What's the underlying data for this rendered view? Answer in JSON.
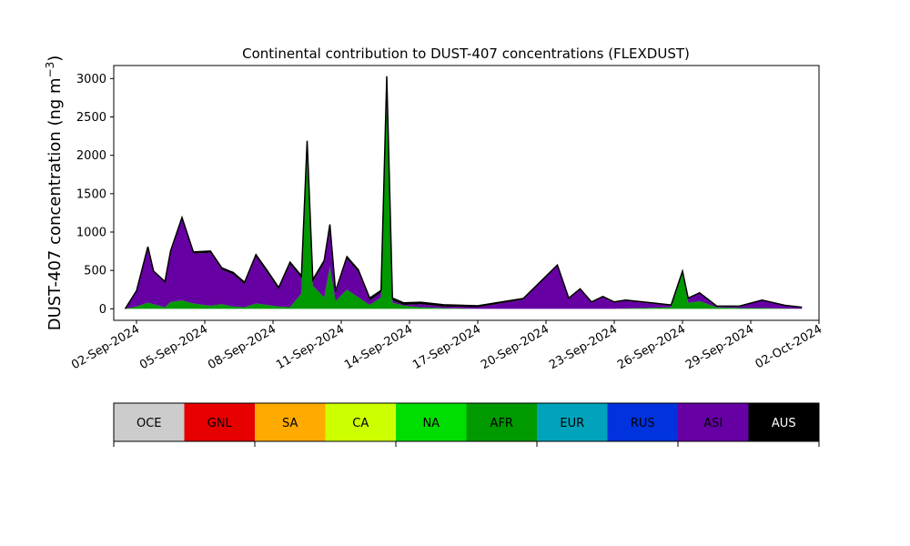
{
  "chart_data": {
    "type": "area",
    "stacked": true,
    "title": "Continental contribution to DUST-407 concentrations (FLEXDUST)",
    "ylabel": "DUST-407 concentration (ng m",
    "ylabel_unit_sup": "−3",
    "ylabel_close": ")",
    "xlabel": "",
    "x_start": "2024-09-01",
    "x_end": "2024-10-02",
    "ylim": [
      -150,
      3170
    ],
    "yticks": [
      0,
      500,
      1000,
      1500,
      2000,
      2500,
      3000
    ],
    "xticks": [
      "02-Sep-2024",
      "05-Sep-2024",
      "08-Sep-2024",
      "11-Sep-2024",
      "14-Sep-2024",
      "17-Sep-2024",
      "20-Sep-2024",
      "23-Sep-2024",
      "26-Sep-2024",
      "29-Sep-2024",
      "02-Oct-2024"
    ],
    "grid": false,
    "legend_position": "below",
    "sources": [
      {
        "name": "OCE",
        "color": "#cccccc",
        "text_color": "#000000"
      },
      {
        "name": "GNL",
        "color": "#e60000",
        "text_color": "#000000"
      },
      {
        "name": "SA",
        "color": "#ffaa00",
        "text_color": "#000000"
      },
      {
        "name": "CA",
        "color": "#ccff00",
        "text_color": "#000000"
      },
      {
        "name": "NA",
        "color": "#00dd00",
        "text_color": "#000000"
      },
      {
        "name": "AFR",
        "color": "#009900",
        "text_color": "#000000"
      },
      {
        "name": "EUR",
        "color": "#00a3bb",
        "text_color": "#000000"
      },
      {
        "name": "RUS",
        "color": "#0033dd",
        "text_color": "#000000"
      },
      {
        "name": "ASI",
        "color": "#6600a3",
        "text_color": "#000000"
      },
      {
        "name": "AUS",
        "color": "#000000",
        "text_color": "#ffffff"
      }
    ],
    "series": [
      {
        "name": "AFR",
        "points": [
          [
            "2024-09-01T12",
            0
          ],
          [
            "2024-09-02T00",
            30
          ],
          [
            "2024-09-02T12",
            80
          ],
          [
            "2024-09-02T18",
            60
          ],
          [
            "2024-09-03T06",
            20
          ],
          [
            "2024-09-03T12",
            90
          ],
          [
            "2024-09-04T00",
            110
          ],
          [
            "2024-09-04T12",
            70
          ],
          [
            "2024-09-05T06",
            40
          ],
          [
            "2024-09-05T18",
            60
          ],
          [
            "2024-09-06T06",
            30
          ],
          [
            "2024-09-06T18",
            20
          ],
          [
            "2024-09-07T06",
            70
          ],
          [
            "2024-09-07T18",
            50
          ],
          [
            "2024-09-08T06",
            30
          ],
          [
            "2024-09-08T18",
            20
          ],
          [
            "2024-09-09T06",
            200
          ],
          [
            "2024-09-09T12",
            2000
          ],
          [
            "2024-09-09T18",
            300
          ],
          [
            "2024-09-10T06",
            150
          ],
          [
            "2024-09-10T12",
            550
          ],
          [
            "2024-09-10T18",
            100
          ],
          [
            "2024-09-11T06",
            250
          ],
          [
            "2024-09-11T18",
            150
          ],
          [
            "2024-09-12T06",
            50
          ],
          [
            "2024-09-12T18",
            150
          ],
          [
            "2024-09-13T00",
            2700
          ],
          [
            "2024-09-13T06",
            80
          ],
          [
            "2024-09-13T18",
            40
          ],
          [
            "2024-09-14T12",
            20
          ],
          [
            "2024-09-15T12",
            10
          ],
          [
            "2024-09-17T00",
            0
          ],
          [
            "2024-09-20T12",
            0
          ],
          [
            "2024-09-23T00",
            0
          ],
          [
            "2024-09-25T12",
            20
          ],
          [
            "2024-09-26T00",
            460
          ],
          [
            "2024-09-26T06",
            80
          ],
          [
            "2024-09-26T18",
            100
          ],
          [
            "2024-09-27T12",
            20
          ],
          [
            "2024-09-28T12",
            10
          ],
          [
            "2024-09-29T12",
            10
          ],
          [
            "2024-10-01T06",
            0
          ]
        ]
      },
      {
        "name": "ASI",
        "points": [
          [
            "2024-09-01T12",
            0
          ],
          [
            "2024-09-02T00",
            200
          ],
          [
            "2024-09-02T12",
            720
          ],
          [
            "2024-09-02T18",
            420
          ],
          [
            "2024-09-03T06",
            320
          ],
          [
            "2024-09-03T12",
            650
          ],
          [
            "2024-09-04T00",
            1060
          ],
          [
            "2024-09-04T12",
            650
          ],
          [
            "2024-09-05T06",
            690
          ],
          [
            "2024-09-05T18",
            450
          ],
          [
            "2024-09-06T06",
            420
          ],
          [
            "2024-09-06T18",
            300
          ],
          [
            "2024-09-07T06",
            610
          ],
          [
            "2024-09-07T18",
            420
          ],
          [
            "2024-09-08T06",
            220
          ],
          [
            "2024-09-08T18",
            560
          ],
          [
            "2024-09-09T06",
            200
          ],
          [
            "2024-09-09T12",
            160
          ],
          [
            "2024-09-09T18",
            50
          ],
          [
            "2024-09-10T06",
            450
          ],
          [
            "2024-09-10T12",
            520
          ],
          [
            "2024-09-10T18",
            100
          ],
          [
            "2024-09-11T06",
            400
          ],
          [
            "2024-09-11T18",
            330
          ],
          [
            "2024-09-12T06",
            60
          ],
          [
            "2024-09-12T18",
            60
          ],
          [
            "2024-09-13T00",
            300
          ],
          [
            "2024-09-13T06",
            30
          ],
          [
            "2024-09-13T18",
            10
          ],
          [
            "2024-09-14T12",
            40
          ],
          [
            "2024-09-15T12",
            20
          ],
          [
            "2024-09-17T00",
            20
          ],
          [
            "2024-09-19T00",
            120
          ],
          [
            "2024-09-20T12",
            560
          ],
          [
            "2024-09-21T00",
            130
          ],
          [
            "2024-09-21T12",
            250
          ],
          [
            "2024-09-22T00",
            80
          ],
          [
            "2024-09-22T12",
            150
          ],
          [
            "2024-09-23T00",
            80
          ],
          [
            "2024-09-23T12",
            100
          ],
          [
            "2024-09-24T12",
            60
          ],
          [
            "2024-09-25T12",
            20
          ],
          [
            "2024-09-26T00",
            20
          ],
          [
            "2024-09-26T06",
            50
          ],
          [
            "2024-09-26T18",
            100
          ],
          [
            "2024-09-27T12",
            10
          ],
          [
            "2024-09-28T12",
            20
          ],
          [
            "2024-09-29T12",
            100
          ],
          [
            "2024-09-30T12",
            40
          ],
          [
            "2024-10-01T06",
            20
          ]
        ]
      },
      {
        "name": "AUS",
        "points": [
          [
            "2024-09-01T12",
            0
          ],
          [
            "2024-09-02T12",
            10
          ],
          [
            "2024-09-04T00",
            20
          ],
          [
            "2024-09-09T12",
            30
          ],
          [
            "2024-09-13T00",
            30
          ],
          [
            "2024-09-20T12",
            10
          ],
          [
            "2024-09-26T00",
            10
          ],
          [
            "2024-10-01T06",
            0
          ]
        ]
      }
    ]
  }
}
